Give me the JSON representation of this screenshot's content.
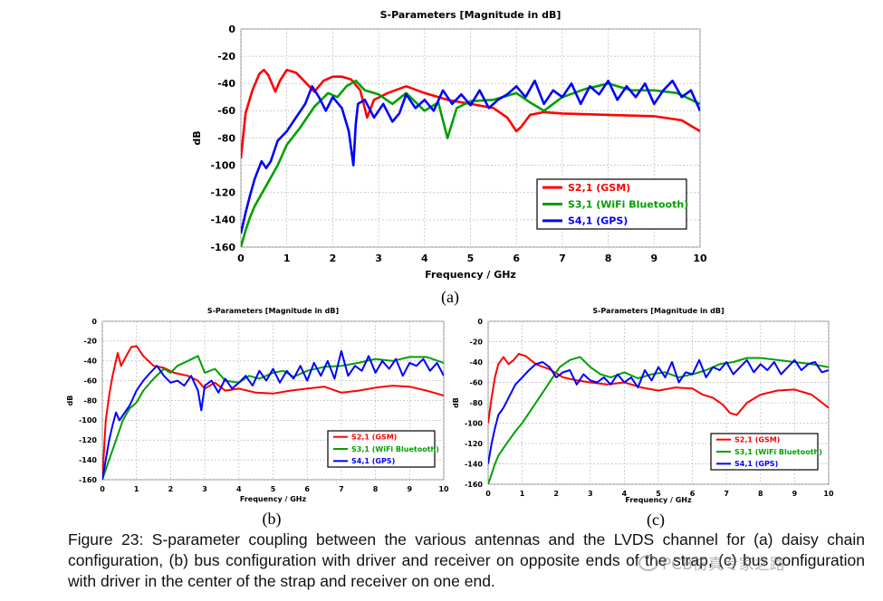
{
  "chart_data": [
    {
      "panel": "a",
      "type": "line",
      "title": "S-Parameters [Magnitude in dB]",
      "xlabel": "Frequency / GHz",
      "ylabel": "dB",
      "xlim": [
        0,
        10
      ],
      "ylim": [
        -160,
        0
      ],
      "xticks": [
        "0",
        "1",
        "2",
        "3",
        "4",
        "5",
        "6",
        "7",
        "8",
        "9",
        "10"
      ],
      "yticks": [
        "0",
        "-20",
        "-40",
        "-60",
        "-80",
        "-100",
        "-120",
        "-140",
        "-160"
      ],
      "grid": true,
      "legend_position": "bottom-right",
      "sublabel": "(a)",
      "series": [
        {
          "name": "S2,1 (GSM)",
          "color": "#ff0000",
          "x": [
            0,
            0.1,
            0.25,
            0.4,
            0.5,
            0.6,
            0.75,
            0.85,
            1.0,
            1.2,
            1.4,
            1.6,
            1.8,
            2.0,
            2.2,
            2.4,
            2.6,
            2.75,
            2.9,
            3.2,
            3.6,
            4.0,
            4.5,
            5.0,
            5.5,
            5.8,
            6.0,
            6.1,
            6.3,
            6.6,
            7.0,
            8.0,
            9.0,
            9.6,
            10.0
          ],
          "y": [
            -95,
            -62,
            -45,
            -33,
            -30,
            -34,
            -46,
            -38,
            -30,
            -32,
            -39,
            -46,
            -38,
            -35,
            -35,
            -37,
            -45,
            -65,
            -52,
            -47,
            -42,
            -47,
            -52,
            -55,
            -58,
            -65,
            -75,
            -72,
            -63,
            -61,
            -62,
            -63,
            -64,
            -67,
            -75
          ]
        },
        {
          "name": "S3,1 (WiFi Bluetooth)",
          "color": "#00a000",
          "x": [
            0,
            0.1,
            0.2,
            0.3,
            0.5,
            0.8,
            1.0,
            1.3,
            1.6,
            1.9,
            2.1,
            2.3,
            2.5,
            2.7,
            3.0,
            3.3,
            3.6,
            4.0,
            4.3,
            4.5,
            4.7,
            5.0,
            5.5,
            6.0,
            6.3,
            6.6,
            7.0,
            7.5,
            8.0,
            8.5,
            9.0,
            9.5,
            10.0
          ],
          "y": [
            -160,
            -148,
            -138,
            -130,
            -118,
            -100,
            -85,
            -72,
            -57,
            -47,
            -50,
            -42,
            -38,
            -45,
            -48,
            -55,
            -47,
            -60,
            -54,
            -80,
            -58,
            -53,
            -52,
            -47,
            -54,
            -60,
            -50,
            -44,
            -40,
            -45,
            -45,
            -47,
            -55
          ]
        },
        {
          "name": "S4,1 (GPS)",
          "color": "#0000ff",
          "x": [
            0,
            0.1,
            0.2,
            0.3,
            0.45,
            0.55,
            0.65,
            0.8,
            1.0,
            1.2,
            1.4,
            1.55,
            1.7,
            1.85,
            2.0,
            2.2,
            2.35,
            2.45,
            2.5,
            2.55,
            2.7,
            2.9,
            3.1,
            3.3,
            3.45,
            3.6,
            3.8,
            4.0,
            4.2,
            4.4,
            4.6,
            4.8,
            5.0,
            5.2,
            5.4,
            5.6,
            5.8,
            6.0,
            6.2,
            6.4,
            6.6,
            6.8,
            7.0,
            7.2,
            7.4,
            7.6,
            7.8,
            8.0,
            8.2,
            8.4,
            8.6,
            8.8,
            9.0,
            9.2,
            9.4,
            9.6,
            9.8,
            10.0
          ],
          "y": [
            -150,
            -135,
            -122,
            -110,
            -97,
            -102,
            -97,
            -82,
            -75,
            -65,
            -55,
            -42,
            -50,
            -60,
            -50,
            -58,
            -75,
            -100,
            -70,
            -55,
            -52,
            -65,
            -55,
            -68,
            -62,
            -48,
            -58,
            -52,
            -60,
            -45,
            -55,
            -48,
            -56,
            -45,
            -58,
            -52,
            -48,
            -42,
            -50,
            -38,
            -55,
            -45,
            -50,
            -40,
            -55,
            -42,
            -48,
            -38,
            -52,
            -42,
            -50,
            -40,
            -55,
            -45,
            -38,
            -50,
            -45,
            -60
          ]
        }
      ]
    },
    {
      "panel": "b",
      "type": "line",
      "title": "S-Parameters [Magnitude in dB]",
      "xlabel": "Frequency / GHz",
      "ylabel": "dB",
      "xlim": [
        0,
        10
      ],
      "ylim": [
        -160,
        0
      ],
      "xticks": [
        "0",
        "1",
        "2",
        "3",
        "4",
        "5",
        "6",
        "7",
        "8",
        "9",
        "10"
      ],
      "yticks": [
        "0",
        "-20",
        "-40",
        "-60",
        "-80",
        "-100",
        "-120",
        "-140",
        "-160"
      ],
      "grid": true,
      "legend_position": "bottom-right",
      "sublabel": "(b)",
      "series": [
        {
          "name": "S2,1 (GSM)",
          "color": "#ff0000",
          "x": [
            0,
            0.1,
            0.2,
            0.3,
            0.45,
            0.55,
            0.7,
            0.85,
            1.0,
            1.2,
            1.5,
            1.8,
            2.1,
            2.5,
            2.8,
            3.0,
            3.3,
            3.6,
            4.0,
            4.5,
            5.0,
            5.5,
            6.0,
            6.5,
            7.0,
            7.5,
            8.0,
            8.5,
            9.0,
            9.5,
            10.0
          ],
          "y": [
            -160,
            -100,
            -75,
            -55,
            -32,
            -45,
            -35,
            -26,
            -25,
            -35,
            -45,
            -47,
            -52,
            -55,
            -60,
            -68,
            -62,
            -70,
            -68,
            -72,
            -73,
            -70,
            -68,
            -66,
            -72,
            -70,
            -67,
            -65,
            -66,
            -70,
            -75
          ]
        },
        {
          "name": "S3,1 (WiFi Bluetooth)",
          "color": "#00a000",
          "x": [
            0,
            0.2,
            0.4,
            0.6,
            0.8,
            1.0,
            1.2,
            1.5,
            1.8,
            2.0,
            2.2,
            2.5,
            2.8,
            3.0,
            3.3,
            3.6,
            4.0,
            4.3,
            4.6,
            5.0,
            5.3,
            5.6,
            6.0,
            6.5,
            7.0,
            7.5,
            8.0,
            8.5,
            9.0,
            9.5,
            10.0
          ],
          "y": [
            -160,
            -140,
            -120,
            -100,
            -88,
            -82,
            -70,
            -58,
            -48,
            -52,
            -45,
            -40,
            -35,
            -52,
            -48,
            -60,
            -62,
            -55,
            -58,
            -52,
            -50,
            -56,
            -50,
            -46,
            -45,
            -42,
            -38,
            -40,
            -36,
            -36,
            -42
          ]
        },
        {
          "name": "S4,1 (GPS)",
          "color": "#0000ff",
          "x": [
            0,
            0.1,
            0.2,
            0.3,
            0.4,
            0.5,
            0.6,
            0.8,
            1.0,
            1.2,
            1.4,
            1.6,
            1.8,
            2.0,
            2.2,
            2.4,
            2.6,
            2.8,
            2.9,
            3.0,
            3.2,
            3.4,
            3.6,
            3.8,
            4.0,
            4.2,
            4.4,
            4.6,
            4.8,
            5.0,
            5.2,
            5.4,
            5.6,
            5.8,
            6.0,
            6.2,
            6.4,
            6.6,
            6.8,
            7.0,
            7.2,
            7.4,
            7.6,
            7.8,
            8.0,
            8.2,
            8.4,
            8.6,
            8.8,
            9.0,
            9.2,
            9.4,
            9.6,
            9.8,
            10.0
          ],
          "y": [
            -160,
            -140,
            -120,
            -105,
            -92,
            -100,
            -95,
            -85,
            -70,
            -60,
            -52,
            -45,
            -55,
            -62,
            -60,
            -65,
            -55,
            -70,
            -90,
            -65,
            -60,
            -72,
            -58,
            -68,
            -62,
            -55,
            -65,
            -50,
            -60,
            -48,
            -62,
            -50,
            -58,
            -45,
            -60,
            -42,
            -55,
            -40,
            -58,
            -30,
            -55,
            -45,
            -50,
            -35,
            -52,
            -40,
            -48,
            -38,
            -55,
            -42,
            -45,
            -38,
            -50,
            -42,
            -55
          ]
        }
      ]
    },
    {
      "panel": "c",
      "type": "line",
      "title": "S-Parameters [Magnitude in dB]",
      "xlabel": "Frequency / GHz",
      "ylabel": "dB",
      "xlim": [
        0,
        10
      ],
      "ylim": [
        -160,
        0
      ],
      "xticks": [
        "0",
        "1",
        "2",
        "3",
        "4",
        "5",
        "6",
        "7",
        "8",
        "9",
        "10"
      ],
      "yticks": [
        "0",
        "-20",
        "-40",
        "-60",
        "-80",
        "-100",
        "-120",
        "-140",
        "-160"
      ],
      "grid": true,
      "legend_position": "bottom-right",
      "sublabel": "(c)",
      "series": [
        {
          "name": "S2,1 (GSM)",
          "color": "#ff0000",
          "x": [
            0,
            0.1,
            0.2,
            0.3,
            0.45,
            0.6,
            0.75,
            0.9,
            1.1,
            1.4,
            1.8,
            2.2,
            2.6,
            3.0,
            3.5,
            4.0,
            4.5,
            5.0,
            5.5,
            6.0,
            6.3,
            6.6,
            6.9,
            7.1,
            7.3,
            7.6,
            8.0,
            8.5,
            9.0,
            9.5,
            10.0
          ],
          "y": [
            -100,
            -75,
            -55,
            -42,
            -35,
            -42,
            -38,
            -32,
            -34,
            -42,
            -47,
            -55,
            -58,
            -60,
            -62,
            -60,
            -65,
            -68,
            -65,
            -66,
            -72,
            -75,
            -82,
            -90,
            -92,
            -80,
            -72,
            -68,
            -67,
            -72,
            -85
          ]
        },
        {
          "name": "S3,1 (WiFi Bluetooth)",
          "color": "#00a000",
          "x": [
            0,
            0.1,
            0.2,
            0.3,
            0.5,
            0.8,
            1.0,
            1.3,
            1.6,
            1.9,
            2.1,
            2.4,
            2.7,
            3.0,
            3.3,
            3.6,
            4.0,
            4.4,
            4.8,
            5.2,
            5.6,
            6.0,
            6.4,
            6.8,
            7.2,
            7.6,
            8.0,
            8.5,
            9.0,
            9.5,
            10.0
          ],
          "y": [
            -160,
            -150,
            -140,
            -132,
            -122,
            -108,
            -100,
            -85,
            -70,
            -55,
            -45,
            -38,
            -35,
            -45,
            -52,
            -55,
            -50,
            -56,
            -52,
            -50,
            -55,
            -52,
            -48,
            -42,
            -40,
            -36,
            -36,
            -38,
            -40,
            -42,
            -45
          ]
        },
        {
          "name": "S4,1 (GPS)",
          "color": "#0000ff",
          "x": [
            0,
            0.1,
            0.2,
            0.3,
            0.45,
            0.6,
            0.8,
            1.0,
            1.2,
            1.4,
            1.6,
            1.8,
            2.0,
            2.2,
            2.4,
            2.6,
            2.8,
            3.0,
            3.2,
            3.4,
            3.6,
            3.8,
            4.0,
            4.2,
            4.4,
            4.6,
            4.8,
            5.0,
            5.2,
            5.4,
            5.6,
            5.8,
            6.0,
            6.2,
            6.4,
            6.6,
            6.8,
            7.0,
            7.2,
            7.4,
            7.6,
            7.8,
            8.0,
            8.2,
            8.4,
            8.6,
            8.8,
            9.0,
            9.2,
            9.4,
            9.6,
            9.8,
            10.0
          ],
          "y": [
            -140,
            -120,
            -105,
            -92,
            -85,
            -75,
            -62,
            -55,
            -48,
            -42,
            -40,
            -45,
            -55,
            -50,
            -48,
            -62,
            -52,
            -58,
            -60,
            -55,
            -62,
            -52,
            -60,
            -55,
            -65,
            -48,
            -58,
            -45,
            -55,
            -40,
            -60,
            -50,
            -52,
            -38,
            -55,
            -45,
            -48,
            -40,
            -52,
            -45,
            -38,
            -50,
            -42,
            -48,
            -40,
            -52,
            -45,
            -38,
            -48,
            -42,
            -40,
            -50,
            -48
          ]
        }
      ]
    }
  ],
  "caption": "Figure 23: S-parameter coupling between the various antennas and the LVDS channel for (a) daisy chain configuration, (b) bus configuration with driver and receiver on opposite ends of the strap, (c) bus configuration with driver in the center of the strap and receiver on one end.",
  "watermark": "PCB仿真专家之路"
}
